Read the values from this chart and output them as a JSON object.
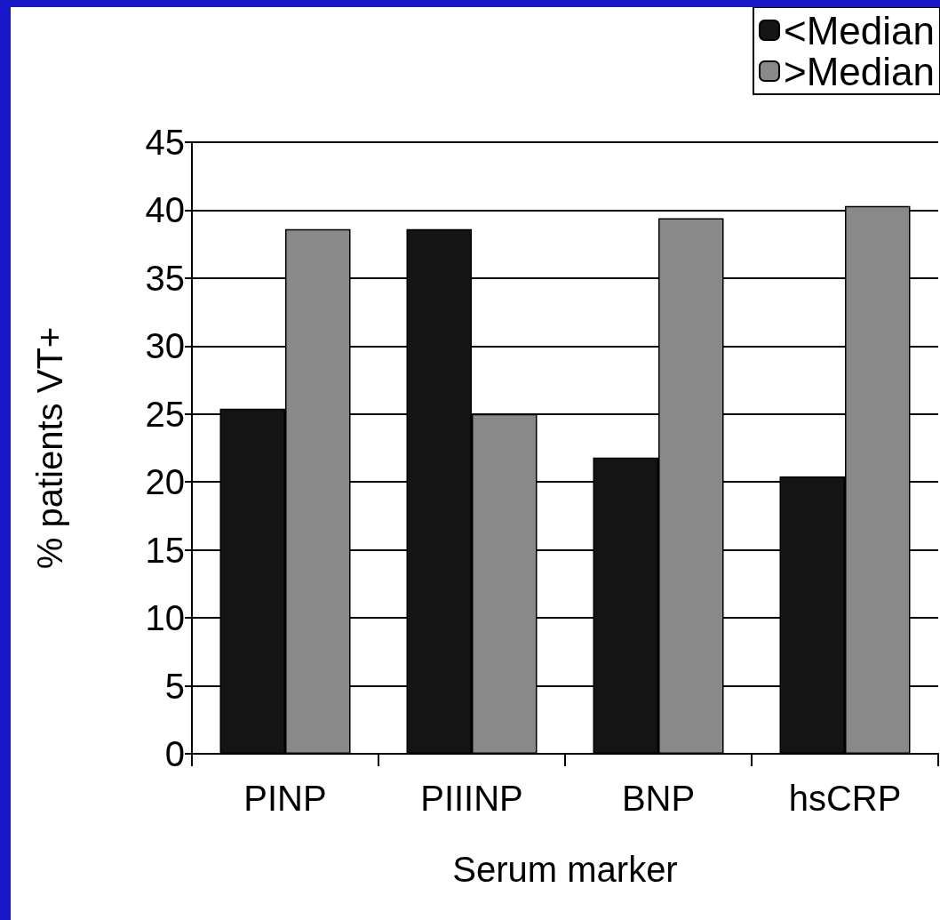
{
  "chart_data": {
    "type": "bar",
    "xlabel": "Serum marker",
    "ylabel": "% patients VT+",
    "categories": [
      "PINP",
      "PIIINP",
      "BNP",
      "hsCRP"
    ],
    "series": [
      {
        "name": "<Median",
        "color": "#141414",
        "values": [
          25.4,
          38.6,
          21.8,
          20.4
        ]
      },
      {
        "name": ">Median",
        "color": "#898989",
        "values": [
          38.6,
          25.0,
          39.4,
          40.3
        ]
      }
    ],
    "ylim": [
      0,
      45
    ],
    "yticks": [
      0,
      5,
      10,
      15,
      20,
      25,
      30,
      35,
      40,
      45
    ],
    "grid": "y",
    "legend": "top right"
  }
}
